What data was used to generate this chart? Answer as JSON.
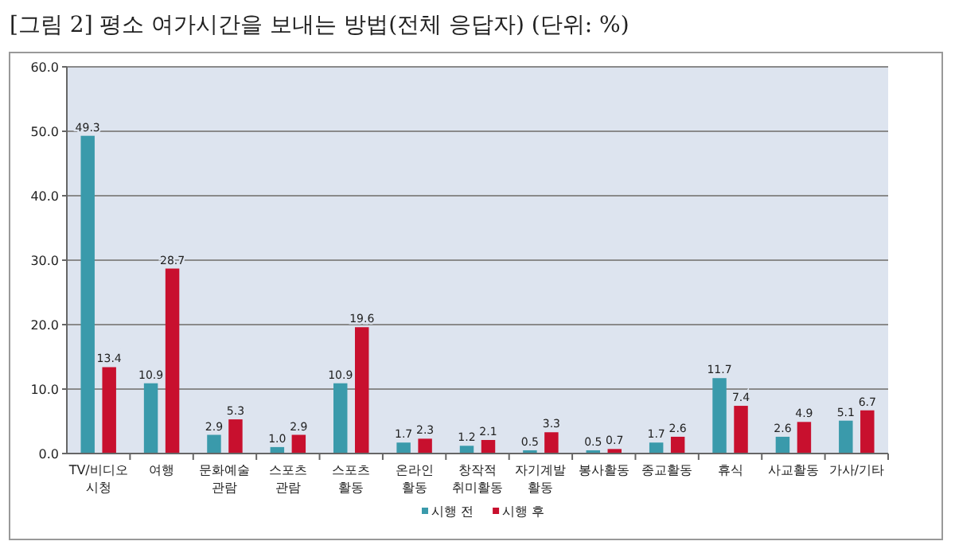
{
  "chart_data": {
    "type": "bar",
    "title": "[그림 2] 평소 여가시간을 보내는 방법(전체 응답자) (단위: %)",
    "categories": [
      "TV/비디오 시청",
      "여행",
      "문화예술 관람",
      "스포츠 관람",
      "스포츠 활동",
      "온라인 활동",
      "창작적 취미활동",
      "자기계발 활동",
      "봉사활동",
      "종교활동",
      "휴식",
      "사교활동",
      "가사/기타"
    ],
    "series": [
      {
        "name": "시행 전",
        "color": "#3a9aab",
        "values": [
          49.3,
          10.9,
          2.9,
          1.0,
          10.9,
          1.7,
          1.2,
          0.5,
          0.5,
          1.7,
          11.7,
          2.6,
          5.1
        ],
        "value_labels": [
          "49.3",
          "10.9",
          "2.9",
          "1.0",
          "10.9",
          "1.7",
          "1.2",
          "0.5",
          "0.5",
          "1.7",
          "11.7",
          "2.6",
          "5.1"
        ]
      },
      {
        "name": "시행 후",
        "color": "#c8102e",
        "values": [
          13.4,
          28.7,
          5.3,
          2.9,
          19.6,
          2.3,
          2.1,
          3.3,
          0.7,
          2.6,
          7.4,
          4.9,
          6.7
        ],
        "value_labels": [
          "13.4",
          "28.7",
          "5.3",
          "2.9",
          "19.6",
          "2.3",
          "2.1",
          "3.3",
          "0.7",
          "2.6",
          "7.4",
          "4.9",
          "6.7"
        ]
      }
    ],
    "ylim": [
      0,
      60
    ],
    "yticks": [
      {
        "value": 0,
        "label": "0.0"
      },
      {
        "value": 10,
        "label": "10.0"
      },
      {
        "value": 20,
        "label": "20.0"
      },
      {
        "value": 30,
        "label": "30.0"
      },
      {
        "value": 40,
        "label": "40.0"
      },
      {
        "value": 50,
        "label": "50.0"
      },
      {
        "value": 60,
        "label": "60.0"
      }
    ],
    "grid": "y",
    "legend": "bottom"
  }
}
